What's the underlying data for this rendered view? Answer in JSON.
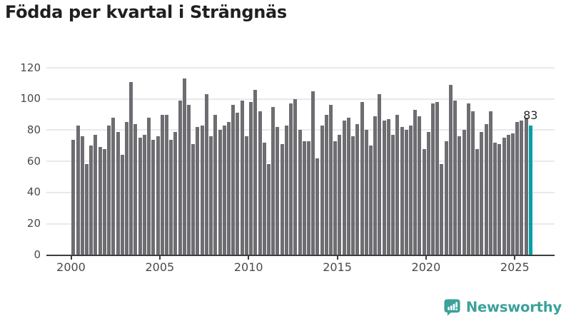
{
  "header": {
    "title": "Födda per kvartal i Strängnäs"
  },
  "annotation": {
    "last_value_label": "83"
  },
  "branding": {
    "logo_text": "Newsworthy",
    "logo_icon": "newsworthy-speech-bubble-bar-chart-icon",
    "logo_color": "#3ba19b"
  },
  "colors": {
    "bar": "#6d6d72",
    "highlight": "#00a0a6",
    "axis": "#3d3d3d",
    "gridline": "#e9e9e9",
    "title": "#1f1f1f",
    "tick_label": "#4a4a4a",
    "annotation": "#2a2a2a"
  },
  "chart_data": {
    "type": "bar",
    "title": "Födda per kvartal i Strängnäs",
    "frequency": "quarterly",
    "x_start": "2000 Q1",
    "x_end": "2025 Q4",
    "xlabel": "",
    "ylabel": "",
    "ylim": [
      0,
      120
    ],
    "y_ticks": [
      0,
      20,
      40,
      60,
      80,
      100,
      120
    ],
    "x_tick_labels": [
      "2000",
      "2005",
      "2010",
      "2015",
      "2020",
      "2025"
    ],
    "grid": true,
    "legend": false,
    "bar_color": "#6d6d72",
    "highlight": {
      "index": 103,
      "color": "#00a0a6",
      "label": "83",
      "quarter": "2025 Q4"
    },
    "values": [
      74,
      83,
      76,
      58,
      70,
      77,
      69,
      68,
      83,
      88,
      79,
      64,
      85,
      111,
      84,
      75,
      77,
      88,
      74,
      76,
      90,
      90,
      74,
      79,
      99,
      113,
      96,
      71,
      82,
      83,
      103,
      76,
      90,
      80,
      83,
      85,
      96,
      91,
      99,
      76,
      98,
      106,
      92,
      72,
      58,
      95,
      82,
      71,
      83,
      97,
      100,
      80,
      73,
      73,
      105,
      62,
      83,
      90,
      96,
      73,
      77,
      86,
      88,
      76,
      84,
      98,
      80,
      70,
      89,
      103,
      86,
      87,
      77,
      90,
      82,
      80,
      83,
      93,
      89,
      68,
      79,
      97,
      98,
      58,
      73,
      109,
      99,
      76,
      80,
      97,
      92,
      68,
      79,
      84,
      92,
      72,
      71,
      75,
      77,
      78,
      85,
      86,
      88,
      83
    ]
  }
}
